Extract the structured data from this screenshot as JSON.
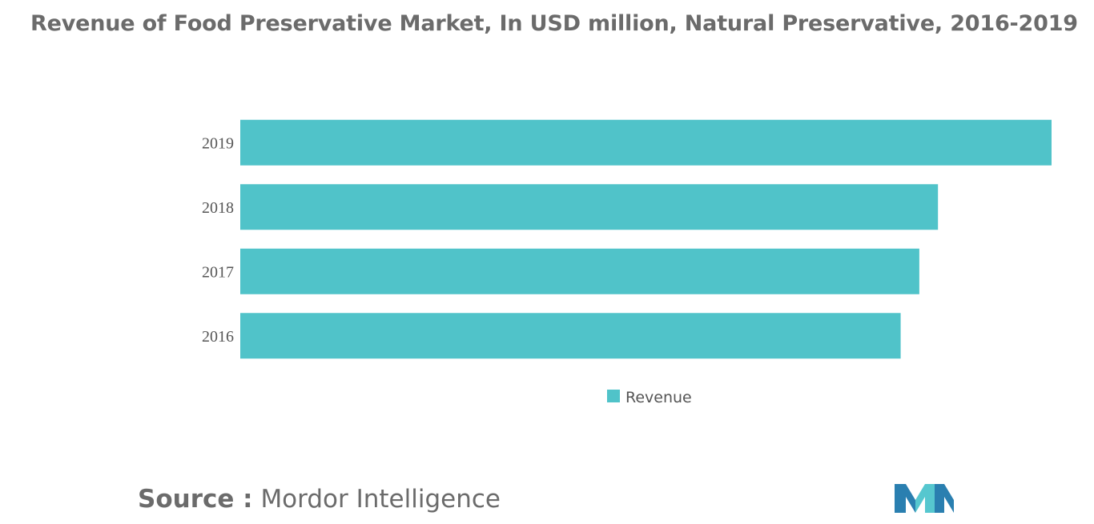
{
  "title": "Revenue of Food Preservative Market, In USD million, Natural Preservative, 2016-2019",
  "source": {
    "label": "Source :",
    "value": "Mordor Intelligence"
  },
  "logo": {
    "icon": "mordor-intelligence-logo-icon"
  },
  "colors": {
    "bar": "#50C3C9",
    "title": "#6B6B6B",
    "logo_dark": "#2A7FB0",
    "logo_light": "#56C7CF"
  },
  "chart_data": {
    "type": "bar",
    "orientation": "horizontal",
    "title": "Revenue of Food Preservative Market, In USD million, Natural Preservative, 2016-2019",
    "categories": [
      "2019",
      "2018",
      "2017",
      "2016"
    ],
    "series": [
      {
        "name": "Revenue",
        "values": [
          100,
          86,
          83.7,
          81.4
        ]
      }
    ],
    "xlim": [
      0,
      100
    ],
    "xlabel": "",
    "ylabel": "",
    "grid": false,
    "legend": "bottom-center"
  }
}
